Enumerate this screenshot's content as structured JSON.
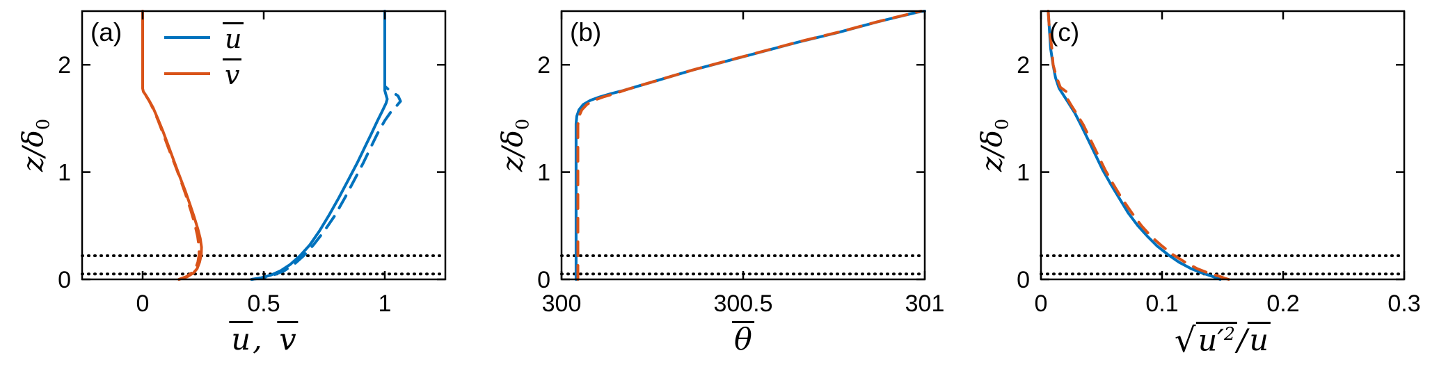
{
  "figure": {
    "background": "#ffffff",
    "axis_color": "#000000",
    "dotted_color": "#000000",
    "blue": "#0072BD",
    "orange": "#D95319"
  },
  "labels": {
    "ylabel_main": "z/δ",
    "ylabel_sub": "0"
  },
  "chart_data": [
    {
      "id": "panel-a",
      "type": "line",
      "panel_label": "(a)",
      "xlabel_parts": {
        "u": "u",
        "sep": ", ",
        "v": "v"
      },
      "ylabel": "z/δ0",
      "xlim": [
        -0.25,
        1.25
      ],
      "ylim": [
        0,
        2.5
      ],
      "xticks": [
        0,
        0.5,
        1
      ],
      "xtick_labels": [
        "0",
        "0.5",
        "1"
      ],
      "yticks": [
        0,
        1,
        2
      ],
      "ytick_labels": [
        "0",
        "1",
        "2"
      ],
      "hlines": [
        0.05,
        0.22
      ],
      "legend": [
        {
          "label": "u",
          "color": "#0072BD"
        },
        {
          "label": "v",
          "color": "#D95319"
        }
      ],
      "series": [
        {
          "name": "u-mean-solid",
          "color": "#0072BD",
          "dash": "solid",
          "points": [
            [
              0.45,
              0
            ],
            [
              0.49,
              0.015
            ],
            [
              0.53,
              0.04
            ],
            [
              0.57,
              0.08
            ],
            [
              0.61,
              0.14
            ],
            [
              0.65,
              0.22
            ],
            [
              0.69,
              0.32
            ],
            [
              0.73,
              0.45
            ],
            [
              0.77,
              0.6
            ],
            [
              0.81,
              0.76
            ],
            [
              0.85,
              0.93
            ],
            [
              0.885,
              1.08
            ],
            [
              0.915,
              1.22
            ],
            [
              0.945,
              1.36
            ],
            [
              0.97,
              1.48
            ],
            [
              0.99,
              1.57
            ],
            [
              1.005,
              1.64
            ],
            [
              1.01,
              1.68
            ],
            [
              1.005,
              1.72
            ],
            [
              1.0,
              1.76
            ],
            [
              1.0,
              2.5
            ]
          ]
        },
        {
          "name": "u-mean-dashed",
          "color": "#0072BD",
          "dash": "dashed",
          "points": [
            [
              0.45,
              0
            ],
            [
              0.5,
              0.015
            ],
            [
              0.54,
              0.04
            ],
            [
              0.585,
              0.08
            ],
            [
              0.625,
              0.14
            ],
            [
              0.665,
              0.22
            ],
            [
              0.705,
              0.32
            ],
            [
              0.75,
              0.45
            ],
            [
              0.795,
              0.6
            ],
            [
              0.835,
              0.76
            ],
            [
              0.875,
              0.93
            ],
            [
              0.91,
              1.08
            ],
            [
              0.94,
              1.22
            ],
            [
              0.97,
              1.36
            ],
            [
              1.0,
              1.48
            ],
            [
              1.025,
              1.56
            ],
            [
              1.05,
              1.62
            ],
            [
              1.065,
              1.66
            ],
            [
              1.055,
              1.71
            ],
            [
              1.02,
              1.76
            ],
            [
              1.0,
              1.8
            ],
            [
              1.0,
              2.5
            ]
          ]
        },
        {
          "name": "v-mean-solid",
          "color": "#D95319",
          "dash": "solid",
          "points": [
            [
              0.15,
              0
            ],
            [
              0.185,
              0.025
            ],
            [
              0.21,
              0.06
            ],
            [
              0.225,
              0.1
            ],
            [
              0.235,
              0.16
            ],
            [
              0.242,
              0.23
            ],
            [
              0.243,
              0.3
            ],
            [
              0.238,
              0.38
            ],
            [
              0.228,
              0.47
            ],
            [
              0.213,
              0.58
            ],
            [
              0.195,
              0.7
            ],
            [
              0.175,
              0.83
            ],
            [
              0.153,
              0.96
            ],
            [
              0.13,
              1.1
            ],
            [
              0.107,
              1.24
            ],
            [
              0.084,
              1.38
            ],
            [
              0.062,
              1.5
            ],
            [
              0.043,
              1.6
            ],
            [
              0.026,
              1.67
            ],
            [
              0.012,
              1.72
            ],
            [
              0.003,
              1.75
            ],
            [
              0.0,
              1.78
            ],
            [
              0.0,
              2.5
            ]
          ]
        },
        {
          "name": "v-mean-dashed",
          "color": "#D95319",
          "dash": "dashed",
          "points": [
            [
              0.15,
              0
            ],
            [
              0.18,
              0.025
            ],
            [
              0.203,
              0.06
            ],
            [
              0.218,
              0.1
            ],
            [
              0.228,
              0.16
            ],
            [
              0.233,
              0.23
            ],
            [
              0.233,
              0.3
            ],
            [
              0.227,
              0.4
            ],
            [
              0.215,
              0.52
            ],
            [
              0.198,
              0.65
            ],
            [
              0.178,
              0.79
            ],
            [
              0.156,
              0.93
            ],
            [
              0.133,
              1.07
            ],
            [
              0.109,
              1.21
            ],
            [
              0.086,
              1.35
            ],
            [
              0.064,
              1.48
            ],
            [
              0.045,
              1.58
            ],
            [
              0.028,
              1.66
            ],
            [
              0.014,
              1.71
            ],
            [
              0.004,
              1.75
            ],
            [
              0.0,
              1.79
            ],
            [
              0.0,
              2.5
            ]
          ]
        }
      ]
    },
    {
      "id": "panel-b",
      "type": "line",
      "panel_label": "(b)",
      "xlabel_parts": {
        "theta": "θ"
      },
      "ylabel": "z/δ0",
      "xlim": [
        300,
        301
      ],
      "ylim": [
        0,
        2.5
      ],
      "xticks": [
        300,
        300.5,
        301
      ],
      "xtick_labels": [
        "300",
        "300.5",
        "301"
      ],
      "yticks": [
        0,
        1,
        2
      ],
      "ytick_labels": [
        "0",
        "1",
        "2"
      ],
      "hlines": [
        0.05,
        0.22
      ],
      "legend": [],
      "series": [
        {
          "name": "theta-mean-solid",
          "color": "#0072BD",
          "dash": "solid",
          "points": [
            [
              300.04,
              0
            ],
            [
              300.04,
              1.45
            ],
            [
              300.042,
              1.52
            ],
            [
              300.048,
              1.58
            ],
            [
              300.06,
              1.63
            ],
            [
              300.08,
              1.67
            ],
            [
              300.105,
              1.7
            ],
            [
              300.135,
              1.73
            ],
            [
              300.17,
              1.76
            ],
            [
              300.21,
              1.8
            ],
            [
              300.25,
              1.84
            ],
            [
              300.3,
              1.89
            ],
            [
              300.36,
              1.95
            ],
            [
              300.45,
              2.03
            ],
            [
              300.55,
              2.12
            ],
            [
              300.65,
              2.21
            ],
            [
              300.76,
              2.3
            ],
            [
              300.87,
              2.4
            ],
            [
              300.98,
              2.49
            ],
            [
              301.0,
              2.5
            ]
          ]
        },
        {
          "name": "theta-mean-dashed",
          "color": "#D95319",
          "dash": "dashed",
          "points": [
            [
              300.045,
              0
            ],
            [
              300.045,
              1.44
            ],
            [
              300.048,
              1.52
            ],
            [
              300.056,
              1.58
            ],
            [
              300.07,
              1.63
            ],
            [
              300.09,
              1.67
            ],
            [
              300.115,
              1.7
            ],
            [
              300.145,
              1.73
            ],
            [
              300.18,
              1.77
            ],
            [
              300.22,
              1.81
            ],
            [
              300.26,
              1.85
            ],
            [
              300.31,
              1.9
            ],
            [
              300.37,
              1.96
            ],
            [
              300.46,
              2.04
            ],
            [
              300.56,
              2.13
            ],
            [
              300.66,
              2.22
            ],
            [
              300.77,
              2.31
            ],
            [
              300.88,
              2.41
            ],
            [
              300.99,
              2.5
            ]
          ]
        }
      ]
    },
    {
      "id": "panel-c",
      "type": "line",
      "panel_label": "(c)",
      "xlabel_parts": {
        "sqrt": "√",
        "radicand": "u′",
        "sup": "2",
        "slash": "/",
        "u": "u"
      },
      "ylabel": "z/δ0",
      "xlim": [
        0,
        0.3
      ],
      "ylim": [
        0,
        2.5
      ],
      "xticks": [
        0,
        0.1,
        0.2,
        0.3
      ],
      "xtick_labels": [
        "0",
        "0.1",
        "0.2",
        "0.3"
      ],
      "yticks": [
        0,
        1,
        2
      ],
      "ytick_labels": [
        "0",
        "1",
        "2"
      ],
      "hlines": [
        0.05,
        0.22
      ],
      "legend": [],
      "series": [
        {
          "name": "turbulence-intensity-solid",
          "color": "#0072BD",
          "dash": "solid",
          "points": [
            [
              0.148,
              0
            ],
            [
              0.146,
              0.01
            ],
            [
              0.141,
              0.03
            ],
            [
              0.133,
              0.06
            ],
            [
              0.124,
              0.1
            ],
            [
              0.114,
              0.16
            ],
            [
              0.105,
              0.23
            ],
            [
              0.096,
              0.31
            ],
            [
              0.088,
              0.4
            ],
            [
              0.08,
              0.5
            ],
            [
              0.072,
              0.62
            ],
            [
              0.065,
              0.75
            ],
            [
              0.058,
              0.88
            ],
            [
              0.051,
              1.02
            ],
            [
              0.045,
              1.16
            ],
            [
              0.039,
              1.3
            ],
            [
              0.033,
              1.44
            ],
            [
              0.028,
              1.55
            ],
            [
              0.023,
              1.64
            ],
            [
              0.019,
              1.71
            ],
            [
              0.015,
              1.78
            ],
            [
              0.012,
              1.88
            ],
            [
              0.01,
              2.0
            ],
            [
              0.008,
              2.15
            ],
            [
              0.007,
              2.32
            ],
            [
              0.006,
              2.5
            ]
          ]
        },
        {
          "name": "turbulence-intensity-dashed",
          "color": "#D95319",
          "dash": "dashed",
          "points": [
            [
              0.155,
              0
            ],
            [
              0.152,
              0.01
            ],
            [
              0.147,
              0.03
            ],
            [
              0.138,
              0.06
            ],
            [
              0.129,
              0.1
            ],
            [
              0.119,
              0.16
            ],
            [
              0.109,
              0.23
            ],
            [
              0.1,
              0.31
            ],
            [
              0.091,
              0.4
            ],
            [
              0.083,
              0.5
            ],
            [
              0.075,
              0.62
            ],
            [
              0.067,
              0.75
            ],
            [
              0.06,
              0.88
            ],
            [
              0.053,
              1.02
            ],
            [
              0.047,
              1.16
            ],
            [
              0.041,
              1.3
            ],
            [
              0.035,
              1.44
            ],
            [
              0.029,
              1.55
            ],
            [
              0.024,
              1.64
            ],
            [
              0.021,
              1.7
            ],
            [
              0.022,
              1.74
            ],
            [
              0.016,
              1.79
            ],
            [
              0.013,
              1.88
            ],
            [
              0.01,
              2.0
            ],
            [
              0.009,
              2.15
            ],
            [
              0.007,
              2.32
            ],
            [
              0.006,
              2.5
            ]
          ]
        }
      ]
    }
  ]
}
